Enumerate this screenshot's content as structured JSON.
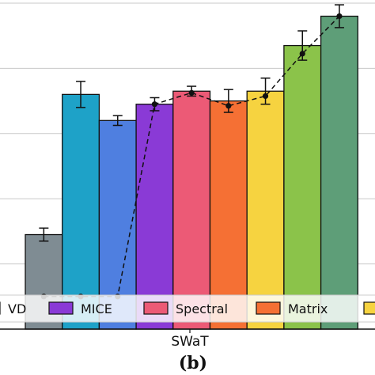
{
  "chart_data": {
    "type": "bar",
    "panel_label": "(b)",
    "categories": [
      "SWaT"
    ],
    "xlabel": "",
    "ylabel": "",
    "ylim": [
      0,
      1
    ],
    "grid": "horizontal",
    "bars": [
      {
        "value": 0.29,
        "err": 0.02,
        "color": "#7f8c93"
      },
      {
        "value": 0.72,
        "err": 0.04,
        "color": "#1ea2c8"
      },
      {
        "value": 0.64,
        "err": 0.015,
        "color": "#4f7fe0"
      },
      {
        "value": 0.69,
        "err": 0.02,
        "color": "#8a3ad6"
      },
      {
        "value": 0.73,
        "err": 0.015,
        "color": "#ec5a76"
      },
      {
        "value": 0.7,
        "err": 0.035,
        "color": "#f57034"
      },
      {
        "value": 0.73,
        "err": 0.04,
        "color": "#f6d340"
      },
      {
        "value": 0.87,
        "err": 0.045,
        "color": "#8bc34a"
      },
      {
        "value": 0.96,
        "err": 0.035,
        "color": "#5e9e78"
      }
    ],
    "trend_line": [
      0.1,
      0.1,
      0.1,
      0.69,
      0.725,
      0.685,
      0.715,
      0.845,
      0.96
    ],
    "legend": {
      "placement": "bottom",
      "entries": [
        {
          "label": "VD",
          "color": "#f6d340"
        },
        {
          "label": "MICE",
          "color": "#8a3ad6"
        },
        {
          "label": "Spectral",
          "color": "#ec5a76"
        },
        {
          "label": "Matrix",
          "color": "#f57034"
        },
        {
          "label": "",
          "color": "#f6d340"
        }
      ]
    }
  }
}
